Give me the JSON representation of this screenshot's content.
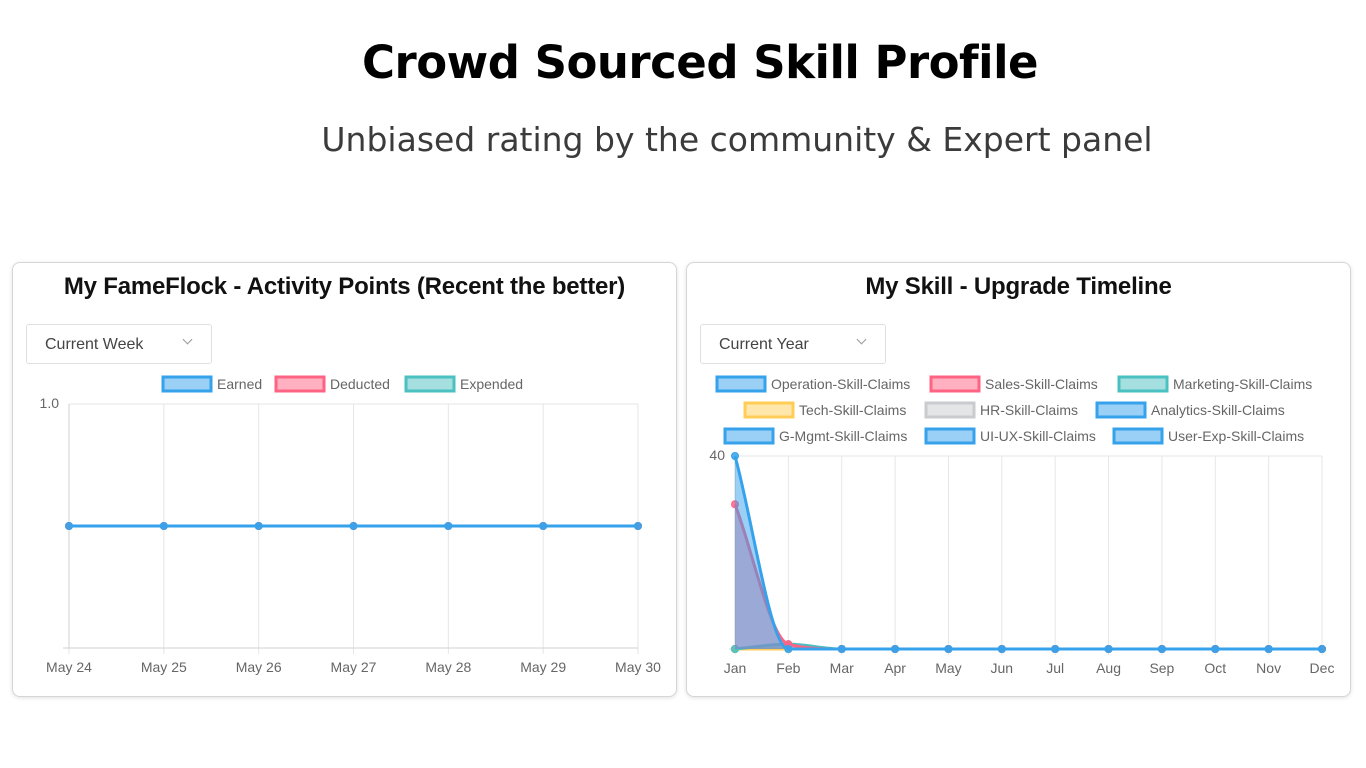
{
  "header": {
    "title": "Crowd Sourced Skill Profile",
    "subtitle": "Unbiased rating by the community & Expert panel"
  },
  "left_panel": {
    "title": "My FameFlock - Activity Points (Recent the better)",
    "period_select": {
      "value": "Current Week"
    }
  },
  "right_panel": {
    "title": "My Skill - Upgrade Timeline",
    "period_select": {
      "value": "Current Year"
    }
  },
  "chart_data": [
    {
      "type": "line",
      "title": "My FameFlock - Activity Points (Recent the better)",
      "categories": [
        "May 24",
        "May 25",
        "May 26",
        "May 27",
        "May 28",
        "May 29",
        "May 30"
      ],
      "y_tick_labels": [
        "1.0"
      ],
      "ylim": [
        0,
        1
      ],
      "grid": true,
      "legend_position": "top",
      "series": [
        {
          "name": "Earned",
          "values": [
            0.5,
            0.5,
            0.5,
            0.5,
            0.5,
            0.5,
            0.5
          ],
          "color": "#36a2eb"
        },
        {
          "name": "Deducted",
          "values": [
            0.5,
            0.5,
            0.5,
            0.5,
            0.5,
            0.5,
            0.5
          ],
          "color": "#ff6384"
        },
        {
          "name": "Expended",
          "values": [
            0.5,
            0.5,
            0.5,
            0.5,
            0.5,
            0.5,
            0.5
          ],
          "color": "#4bc0c0"
        }
      ]
    },
    {
      "type": "area",
      "title": "My Skill - Upgrade Timeline",
      "categories": [
        "Jan",
        "Feb",
        "Mar",
        "Apr",
        "May",
        "Jun",
        "Jul",
        "Aug",
        "Sep",
        "Oct",
        "Nov",
        "Dec"
      ],
      "y_tick_labels": [
        "40"
      ],
      "ylim": [
        0,
        40
      ],
      "grid": true,
      "legend_position": "top",
      "series": [
        {
          "name": "Operation-Skill-Claims",
          "values": [
            40,
            0,
            0,
            0,
            0,
            0,
            0,
            0,
            0,
            0,
            0,
            0
          ],
          "color": "#36a2eb"
        },
        {
          "name": "Sales-Skill-Claims",
          "values": [
            30,
            1,
            0,
            0,
            0,
            0,
            0,
            0,
            0,
            0,
            0,
            0
          ],
          "color": "#ff6384"
        },
        {
          "name": "Marketing-Skill-Claims",
          "values": [
            0,
            1,
            0,
            0,
            0,
            0,
            0,
            0,
            0,
            0,
            0,
            0
          ],
          "color": "#4bc0c0"
        },
        {
          "name": "Tech-Skill-Claims",
          "values": [
            0,
            0,
            0,
            0,
            0,
            0,
            0,
            0,
            0,
            0,
            0,
            0
          ],
          "color": "#ffcd56"
        },
        {
          "name": "HR-Skill-Claims",
          "values": [
            0,
            0,
            0,
            0,
            0,
            0,
            0,
            0,
            0,
            0,
            0,
            0
          ],
          "color": "#c9cbcf"
        },
        {
          "name": "Analytics-Skill-Claims",
          "values": [
            0,
            0,
            0,
            0,
            0,
            0,
            0,
            0,
            0,
            0,
            0,
            0
          ],
          "color": "#36a2eb"
        },
        {
          "name": "G-Mgmt-Skill-Claims",
          "values": [
            0,
            0,
            0,
            0,
            0,
            0,
            0,
            0,
            0,
            0,
            0,
            0
          ],
          "color": "#36a2eb"
        },
        {
          "name": "UI-UX-Skill-Claims",
          "values": [
            0,
            0,
            0,
            0,
            0,
            0,
            0,
            0,
            0,
            0,
            0,
            0
          ],
          "color": "#36a2eb"
        },
        {
          "name": "User-Exp-Skill-Claims",
          "values": [
            0,
            0,
            0,
            0,
            0,
            0,
            0,
            0,
            0,
            0,
            0,
            0
          ],
          "color": "#36a2eb"
        }
      ]
    }
  ]
}
